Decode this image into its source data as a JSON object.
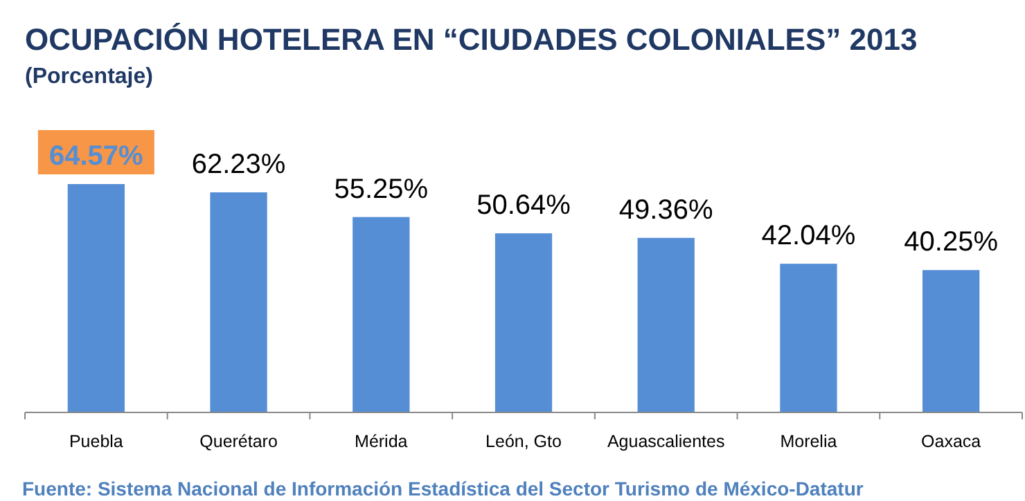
{
  "chart_data": {
    "type": "bar",
    "title": "OCUPACIÓN HOTELERA EN “CIUDADES COLONIALES” 2013",
    "subtitle": "(Porcentaje)",
    "categories": [
      "Puebla",
      "Querétaro",
      "Mérida",
      "León, Gto",
      "Aguascalientes",
      "Morelia",
      "Oaxaca"
    ],
    "values": [
      64.57,
      62.23,
      55.25,
      50.64,
      49.36,
      42.04,
      40.25
    ],
    "color": "#558ed5",
    "value_labels": [
      "64.57%",
      "62.23%",
      "55.25%",
      "50.64%",
      "49.36%",
      "42.04%",
      "40.25%"
    ],
    "annotations": [
      "Fuente: Sistema Nacional de Información Estadística del Sector Turismo de México-Datatur"
    ]
  }
}
